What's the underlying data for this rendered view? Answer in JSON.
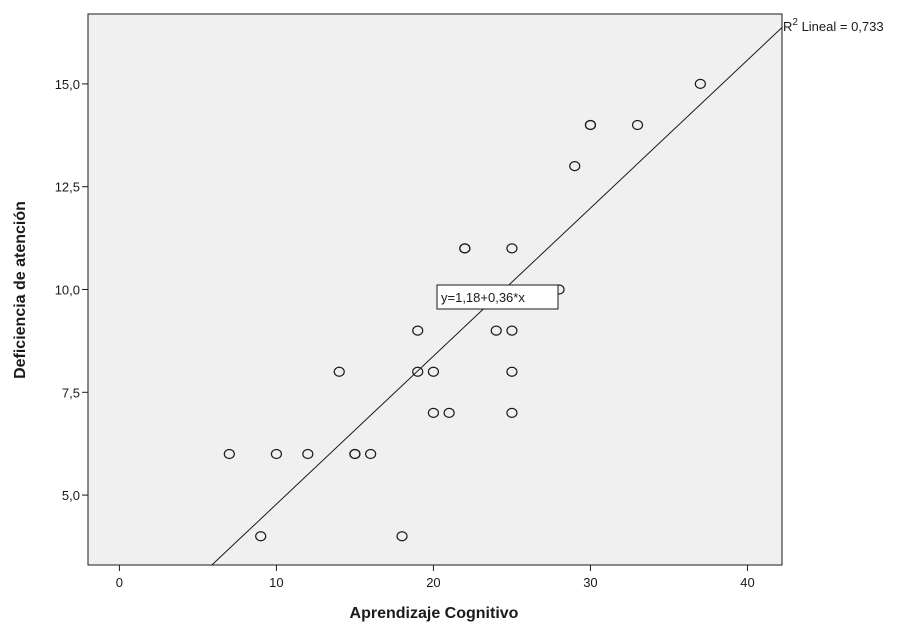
{
  "chart_data": {
    "type": "scatter",
    "xlabel": "Aprendizaje Cognitivo",
    "ylabel": "Deficiencia de atención",
    "xlim": [
      -2,
      42.2
    ],
    "ylim": [
      3.3,
      16.7
    ],
    "x_ticks": [
      0,
      10,
      20,
      30,
      40
    ],
    "x_tick_labels": [
      "0",
      "10",
      "20",
      "30",
      "40"
    ],
    "y_ticks": [
      5,
      7.5,
      10,
      12.5,
      15
    ],
    "y_tick_labels": [
      "5,0",
      "7,5",
      "10,0",
      "12,5",
      "15,0"
    ],
    "points": [
      {
        "x": 7,
        "y": 6
      },
      {
        "x": 9,
        "y": 4
      },
      {
        "x": 10,
        "y": 6
      },
      {
        "x": 12,
        "y": 6
      },
      {
        "x": 14,
        "y": 8
      },
      {
        "x": 15,
        "y": 6
      },
      {
        "x": 15,
        "y": 6
      },
      {
        "x": 16,
        "y": 6
      },
      {
        "x": 18,
        "y": 4
      },
      {
        "x": 19,
        "y": 8
      },
      {
        "x": 19,
        "y": 9
      },
      {
        "x": 20,
        "y": 7
      },
      {
        "x": 20,
        "y": 8
      },
      {
        "x": 21,
        "y": 7
      },
      {
        "x": 22,
        "y": 11
      },
      {
        "x": 22,
        "y": 11
      },
      {
        "x": 24,
        "y": 9
      },
      {
        "x": 25,
        "y": 11
      },
      {
        "x": 25,
        "y": 9
      },
      {
        "x": 25,
        "y": 8
      },
      {
        "x": 25,
        "y": 7
      },
      {
        "x": 28,
        "y": 10
      },
      {
        "x": 29,
        "y": 13
      },
      {
        "x": 30,
        "y": 14
      },
      {
        "x": 30,
        "y": 14
      },
      {
        "x": 33,
        "y": 14
      },
      {
        "x": 37,
        "y": 15
      }
    ],
    "fit_line": {
      "intercept": 1.18,
      "slope": 0.36
    },
    "equation_label": "y=1,18+0,36*x",
    "r2_label_prefix": "R",
    "r2_label_sup": "2",
    "r2_label_suffix": " Lineal = 0,733",
    "plot_background": "#f0f0f0",
    "point_stroke": "#1a1a1a",
    "line_color": "#1a1a1a",
    "grid": false
  }
}
